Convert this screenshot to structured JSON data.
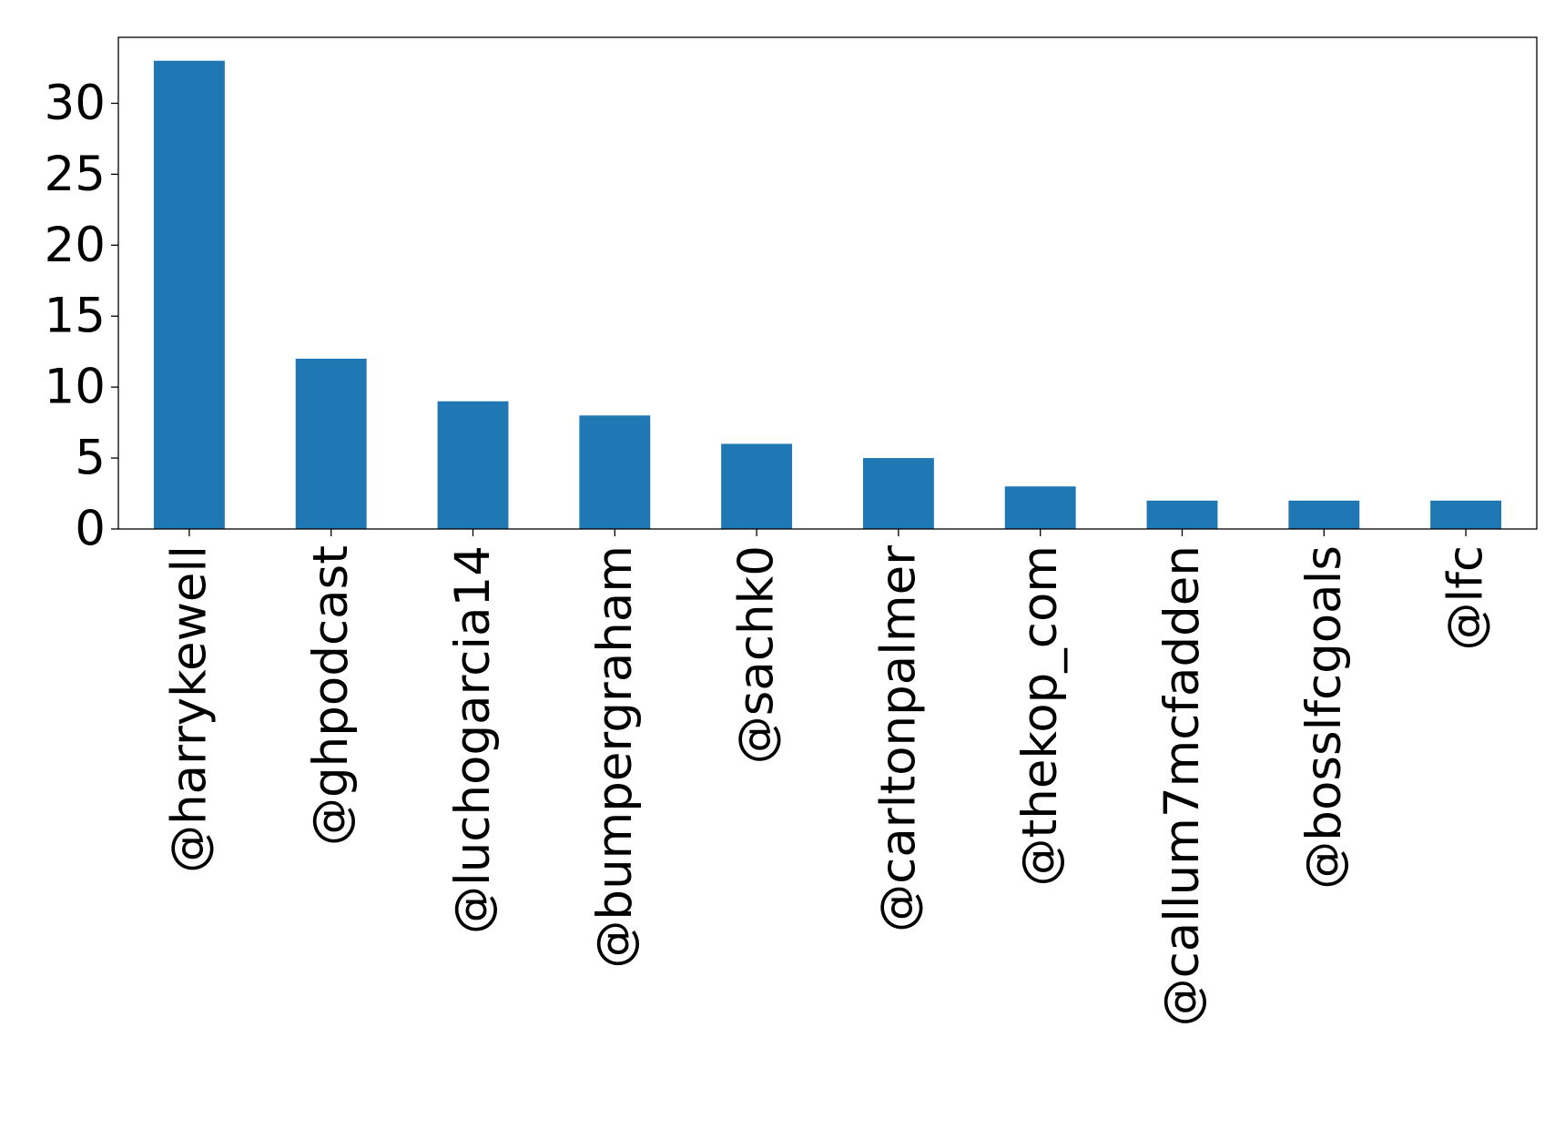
{
  "chart_data": {
    "type": "bar",
    "title": "",
    "xlabel": "",
    "ylabel": "",
    "categories": [
      "@harrykewell",
      "@ghpodcast",
      "@luchogarcia14",
      "@bumpergraham",
      "@sachk0",
      "@carltonpalmer",
      "@thekop_com",
      "@callum7mcfadden",
      "@bosslfcgoals",
      "@lfc"
    ],
    "values": [
      33,
      12,
      9,
      8,
      6,
      5,
      3,
      2,
      2,
      2
    ],
    "ylim": [
      0,
      34.65
    ],
    "yticks": [
      0,
      5,
      10,
      15,
      20,
      25,
      30
    ],
    "grid": false,
    "legend": "none",
    "bar_color": "#1f77b4"
  }
}
